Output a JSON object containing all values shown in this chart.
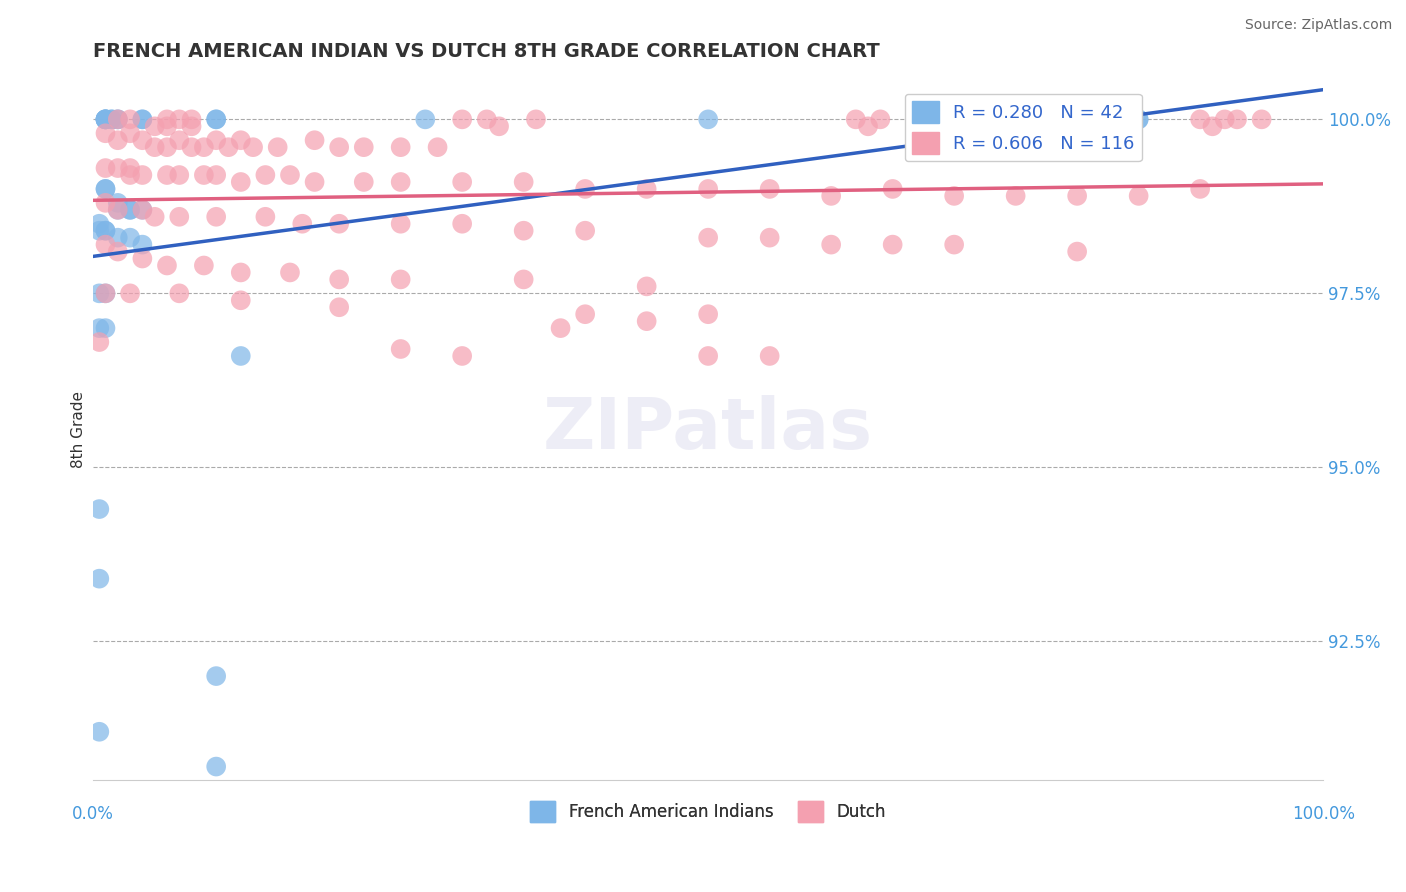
{
  "title": "FRENCH AMERICAN INDIAN VS DUTCH 8TH GRADE CORRELATION CHART",
  "ylabel": "8th Grade",
  "source": "Source: ZipAtlas.com",
  "x_range": [
    0.0,
    1.0
  ],
  "y_range": [
    0.905,
    1.006
  ],
  "y_ticks": [
    0.925,
    0.95,
    0.975,
    1.0
  ],
  "y_tick_labels": [
    "92.5%",
    "95.0%",
    "97.5%",
    "100.0%"
  ],
  "blue_R": 0.28,
  "blue_N": 42,
  "pink_R": 0.606,
  "pink_N": 116,
  "blue_color": "#7EB6E8",
  "pink_color": "#F4A0B0",
  "trend_blue": "#3060C0",
  "trend_pink": "#E06080",
  "tick_color": "#4499DD",
  "legend_label_blue": "French American Indians",
  "legend_label_pink": "Dutch",
  "blue_scatter": [
    [
      0.01,
      1.0
    ],
    [
      0.01,
      1.0
    ],
    [
      0.01,
      1.0
    ],
    [
      0.01,
      1.0
    ],
    [
      0.01,
      1.0
    ],
    [
      0.015,
      1.0
    ],
    [
      0.015,
      1.0
    ],
    [
      0.02,
      1.0
    ],
    [
      0.02,
      1.0
    ],
    [
      0.04,
      1.0
    ],
    [
      0.04,
      1.0
    ],
    [
      0.1,
      1.0
    ],
    [
      0.1,
      1.0
    ],
    [
      0.27,
      1.0
    ],
    [
      0.5,
      1.0
    ],
    [
      0.7,
      1.0
    ],
    [
      0.85,
      1.0
    ],
    [
      0.85,
      1.0
    ],
    [
      0.01,
      0.99
    ],
    [
      0.01,
      0.99
    ],
    [
      0.02,
      0.988
    ],
    [
      0.02,
      0.987
    ],
    [
      0.03,
      0.987
    ],
    [
      0.03,
      0.987
    ],
    [
      0.04,
      0.987
    ],
    [
      0.005,
      0.985
    ],
    [
      0.005,
      0.984
    ],
    [
      0.01,
      0.984
    ],
    [
      0.01,
      0.984
    ],
    [
      0.02,
      0.983
    ],
    [
      0.03,
      0.983
    ],
    [
      0.04,
      0.982
    ],
    [
      0.005,
      0.975
    ],
    [
      0.01,
      0.975
    ],
    [
      0.005,
      0.97
    ],
    [
      0.01,
      0.97
    ],
    [
      0.12,
      0.966
    ],
    [
      0.005,
      0.944
    ],
    [
      0.005,
      0.934
    ],
    [
      0.1,
      0.92
    ],
    [
      0.005,
      0.912
    ],
    [
      0.1,
      0.907
    ]
  ],
  "pink_scatter": [
    [
      0.02,
      1.0
    ],
    [
      0.03,
      1.0
    ],
    [
      0.05,
      0.999
    ],
    [
      0.06,
      1.0
    ],
    [
      0.06,
      0.999
    ],
    [
      0.07,
      1.0
    ],
    [
      0.08,
      1.0
    ],
    [
      0.08,
      0.999
    ],
    [
      0.3,
      1.0
    ],
    [
      0.32,
      1.0
    ],
    [
      0.33,
      0.999
    ],
    [
      0.36,
      1.0
    ],
    [
      0.62,
      1.0
    ],
    [
      0.63,
      0.999
    ],
    [
      0.64,
      1.0
    ],
    [
      0.68,
      1.0
    ],
    [
      0.72,
      1.0
    ],
    [
      0.74,
      0.999
    ],
    [
      0.82,
      1.0
    ],
    [
      0.82,
      0.999
    ],
    [
      0.9,
      1.0
    ],
    [
      0.91,
      0.999
    ],
    [
      0.92,
      1.0
    ],
    [
      0.93,
      1.0
    ],
    [
      0.95,
      1.0
    ],
    [
      0.01,
      0.998
    ],
    [
      0.02,
      0.997
    ],
    [
      0.03,
      0.998
    ],
    [
      0.04,
      0.997
    ],
    [
      0.05,
      0.996
    ],
    [
      0.06,
      0.996
    ],
    [
      0.07,
      0.997
    ],
    [
      0.08,
      0.996
    ],
    [
      0.09,
      0.996
    ],
    [
      0.1,
      0.997
    ],
    [
      0.11,
      0.996
    ],
    [
      0.12,
      0.997
    ],
    [
      0.13,
      0.996
    ],
    [
      0.15,
      0.996
    ],
    [
      0.18,
      0.997
    ],
    [
      0.2,
      0.996
    ],
    [
      0.22,
      0.996
    ],
    [
      0.25,
      0.996
    ],
    [
      0.28,
      0.996
    ],
    [
      0.01,
      0.993
    ],
    [
      0.02,
      0.993
    ],
    [
      0.03,
      0.992
    ],
    [
      0.03,
      0.993
    ],
    [
      0.04,
      0.992
    ],
    [
      0.06,
      0.992
    ],
    [
      0.07,
      0.992
    ],
    [
      0.09,
      0.992
    ],
    [
      0.1,
      0.992
    ],
    [
      0.12,
      0.991
    ],
    [
      0.14,
      0.992
    ],
    [
      0.16,
      0.992
    ],
    [
      0.18,
      0.991
    ],
    [
      0.22,
      0.991
    ],
    [
      0.25,
      0.991
    ],
    [
      0.3,
      0.991
    ],
    [
      0.35,
      0.991
    ],
    [
      0.4,
      0.99
    ],
    [
      0.45,
      0.99
    ],
    [
      0.5,
      0.99
    ],
    [
      0.55,
      0.99
    ],
    [
      0.6,
      0.989
    ],
    [
      0.65,
      0.99
    ],
    [
      0.7,
      0.989
    ],
    [
      0.75,
      0.989
    ],
    [
      0.8,
      0.989
    ],
    [
      0.85,
      0.989
    ],
    [
      0.9,
      0.99
    ],
    [
      0.01,
      0.988
    ],
    [
      0.02,
      0.987
    ],
    [
      0.04,
      0.987
    ],
    [
      0.05,
      0.986
    ],
    [
      0.07,
      0.986
    ],
    [
      0.1,
      0.986
    ],
    [
      0.14,
      0.986
    ],
    [
      0.17,
      0.985
    ],
    [
      0.2,
      0.985
    ],
    [
      0.25,
      0.985
    ],
    [
      0.3,
      0.985
    ],
    [
      0.35,
      0.984
    ],
    [
      0.4,
      0.984
    ],
    [
      0.5,
      0.983
    ],
    [
      0.55,
      0.983
    ],
    [
      0.6,
      0.982
    ],
    [
      0.65,
      0.982
    ],
    [
      0.7,
      0.982
    ],
    [
      0.8,
      0.981
    ],
    [
      0.01,
      0.982
    ],
    [
      0.02,
      0.981
    ],
    [
      0.04,
      0.98
    ],
    [
      0.06,
      0.979
    ],
    [
      0.09,
      0.979
    ],
    [
      0.12,
      0.978
    ],
    [
      0.16,
      0.978
    ],
    [
      0.2,
      0.977
    ],
    [
      0.25,
      0.977
    ],
    [
      0.35,
      0.977
    ],
    [
      0.45,
      0.976
    ],
    [
      0.01,
      0.975
    ],
    [
      0.03,
      0.975
    ],
    [
      0.07,
      0.975
    ],
    [
      0.12,
      0.974
    ],
    [
      0.2,
      0.973
    ],
    [
      0.4,
      0.972
    ],
    [
      0.5,
      0.972
    ],
    [
      0.45,
      0.971
    ],
    [
      0.38,
      0.97
    ],
    [
      0.005,
      0.968
    ],
    [
      0.25,
      0.967
    ],
    [
      0.3,
      0.966
    ],
    [
      0.5,
      0.966
    ],
    [
      0.55,
      0.966
    ]
  ]
}
